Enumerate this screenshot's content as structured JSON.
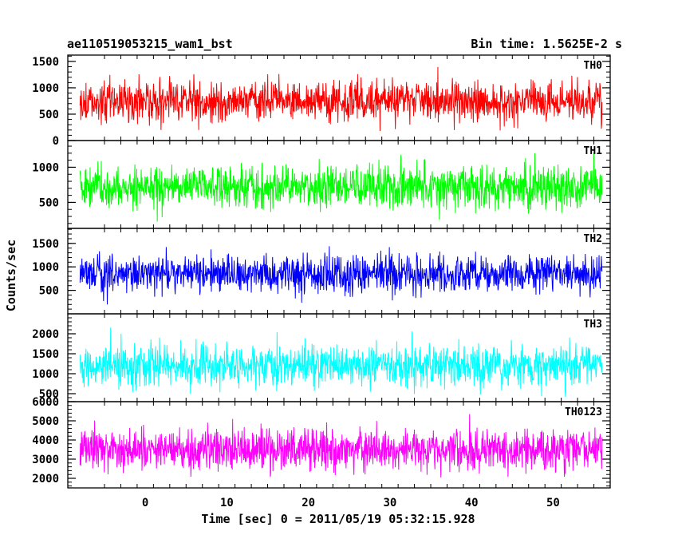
{
  "chart_data": {
    "type": "line",
    "title": "ae110519053215_wam1_bst",
    "subtitle": "Bin time: 1.5625E-2 s",
    "xlabel": "Time [sec] 0 = 2011/05/19 05:32:15.928",
    "ylabel": "Counts/sec",
    "xlim": [
      -9.5,
      57
    ],
    "x_ticks": [
      0,
      10,
      20,
      30,
      40,
      50
    ],
    "data_x_range": [
      -8,
      56
    ],
    "panels": [
      {
        "name": "TH0",
        "color": "#ff0000",
        "ylim": [
          0,
          1620
        ],
        "y_ticks": [
          0,
          500,
          1000,
          1500
        ],
        "mean": 750,
        "range": [
          80,
          1620
        ]
      },
      {
        "name": "TH1",
        "color": "#00ff00",
        "ylim": [
          130,
          1380
        ],
        "y_ticks": [
          500,
          1000
        ],
        "mean": 720,
        "range": [
          170,
          1380
        ]
      },
      {
        "name": "TH2",
        "color": "#0000ff",
        "ylim": [
          0,
          1820
        ],
        "y_ticks": [
          500,
          1000,
          1500
        ],
        "mean": 850,
        "range": [
          150,
          1820
        ]
      },
      {
        "name": "TH3",
        "color": "#00ffff",
        "ylim": [
          300,
          2500
        ],
        "y_ticks": [
          500,
          1000,
          1500,
          2000
        ],
        "mean": 1200,
        "range": [
          320,
          2450
        ]
      },
      {
        "name": "TH0123",
        "color": "#ff00ff",
        "ylim": [
          1500,
          6000
        ],
        "y_ticks": [
          2000,
          3000,
          4000,
          5000,
          6000
        ],
        "mean": 3500,
        "range": [
          1650,
          6000
        ]
      }
    ]
  }
}
